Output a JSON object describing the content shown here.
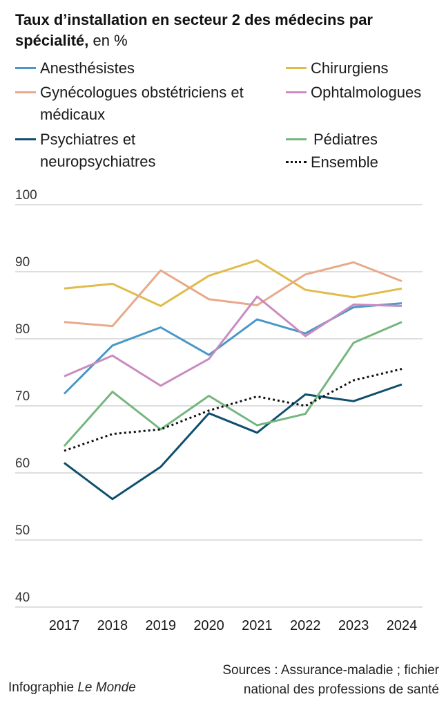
{
  "title_bold": "Taux d’installation en secteur 2 des médecins par spécialité,",
  "title_unit": "en %",
  "credit_prefix": "Infographie",
  "credit_name": "Le Monde",
  "source_line1": "Sources : Assurance-maladie ; fichier",
  "source_line2": "national des professions de santé",
  "chart_data": {
    "type": "line",
    "title": "Taux d’installation en secteur 2 des médecins par spécialité, en %",
    "xlabel": "",
    "ylabel": "",
    "x": [
      "2017",
      "2018",
      "2019",
      "2020",
      "2021",
      "2022",
      "2023",
      "2024"
    ],
    "ylim": [
      40,
      100
    ],
    "yticks": [
      40,
      50,
      60,
      70,
      80,
      90,
      100
    ],
    "grid": "horizontal",
    "legend": "top",
    "series": [
      {
        "name": "Anesthésistes",
        "color": "#4a98c5",
        "dash": "solid",
        "values": [
          71.8,
          79.0,
          81.7,
          77.6,
          82.9,
          80.8,
          84.7,
          85.3
        ]
      },
      {
        "name": "Chirurgiens",
        "color": "#e0bc4a",
        "dash": "solid",
        "values": [
          87.5,
          88.2,
          84.9,
          89.4,
          91.7,
          87.3,
          86.2,
          87.5
        ]
      },
      {
        "name": "Gynécologues obstétriciens et médicaux",
        "color": "#e8a98a",
        "dash": "solid",
        "values": [
          82.5,
          81.9,
          90.2,
          85.9,
          85.0,
          89.6,
          91.4,
          88.6
        ]
      },
      {
        "name": "Ophtalmologues",
        "color": "#c98bc0",
        "dash": "solid",
        "values": [
          74.4,
          77.5,
          73.0,
          77.0,
          86.3,
          80.4,
          85.1,
          84.9
        ]
      },
      {
        "name": "Psychiatres et neuropsychiatres",
        "color": "#0f4f6e",
        "dash": "solid",
        "values": [
          61.5,
          56.1,
          60.9,
          68.9,
          66.0,
          71.7,
          70.7,
          73.2
        ]
      },
      {
        "name": "Pédiatres",
        "color": "#74b67e",
        "dash": "solid",
        "values": [
          64.0,
          72.1,
          66.5,
          71.5,
          67.1,
          68.8,
          79.4,
          82.5
        ]
      },
      {
        "name": "Ensemble",
        "color": "#111111",
        "dash": "dotted",
        "values": [
          63.3,
          65.8,
          66.5,
          69.3,
          71.4,
          70.0,
          73.8,
          75.5
        ]
      }
    ]
  }
}
